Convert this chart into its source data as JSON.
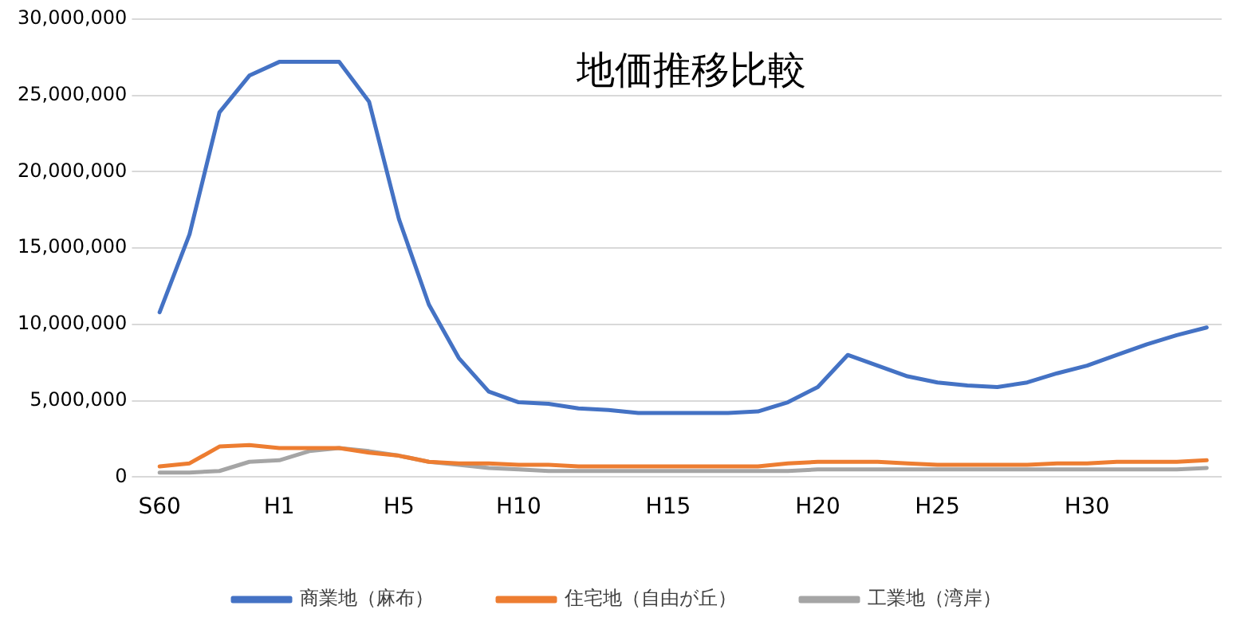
{
  "chart_data": {
    "type": "line",
    "title": "地価推移比較",
    "categories": [
      "S60",
      null,
      null,
      null,
      "H1",
      null,
      null,
      null,
      "H5",
      null,
      null,
      null,
      "H10",
      null,
      null,
      null,
      null,
      "H15",
      null,
      null,
      null,
      null,
      "H20",
      null,
      null,
      null,
      "H25",
      null,
      null,
      null,
      null,
      "H30",
      null,
      null,
      null,
      null
    ],
    "series": [
      {
        "name": "商業地（麻布）",
        "color": "#4472c4",
        "values": [
          10800000,
          15900000,
          23900000,
          26300000,
          27200000,
          27200000,
          27200000,
          24600000,
          16900000,
          11300000,
          7800000,
          5600000,
          4900000,
          4800000,
          4500000,
          4400000,
          4200000,
          4200000,
          4200000,
          4200000,
          4300000,
          4900000,
          5900000,
          8000000,
          7300000,
          6600000,
          6200000,
          6000000,
          5900000,
          6200000,
          6800000,
          7300000,
          8000000,
          8700000,
          9300000,
          9800000
        ]
      },
      {
        "name": "住宅地（自由が丘）",
        "color": "#ed7d31",
        "values": [
          700000,
          900000,
          2000000,
          2100000,
          1900000,
          1900000,
          1900000,
          1600000,
          1400000,
          1000000,
          900000,
          900000,
          800000,
          800000,
          700000,
          700000,
          700000,
          700000,
          700000,
          700000,
          700000,
          900000,
          1000000,
          1000000,
          1000000,
          900000,
          800000,
          800000,
          800000,
          800000,
          900000,
          900000,
          1000000,
          1000000,
          1000000,
          1100000
        ]
      },
      {
        "name": "工業地（湾岸）",
        "color": "#a5a5a5",
        "values": [
          300000,
          300000,
          400000,
          1000000,
          1100000,
          1700000,
          1900000,
          1700000,
          1400000,
          1000000,
          800000,
          600000,
          500000,
          400000,
          400000,
          400000,
          400000,
          400000,
          400000,
          400000,
          400000,
          400000,
          500000,
          500000,
          500000,
          500000,
          500000,
          500000,
          500000,
          500000,
          500000,
          500000,
          500000,
          500000,
          500000,
          600000
        ]
      }
    ],
    "ylim": [
      0,
      30000000
    ],
    "yticks": [
      {
        "value": 0,
        "label": "0"
      },
      {
        "value": 5000000,
        "label": "5,000,000"
      },
      {
        "value": 10000000,
        "label": "10,000,000"
      },
      {
        "value": 15000000,
        "label": "15,000,000"
      },
      {
        "value": 20000000,
        "label": "20,000,000"
      },
      {
        "value": 25000000,
        "label": "25,000,000"
      },
      {
        "value": 30000000,
        "label": "30,000,000"
      }
    ],
    "grid": "y",
    "legend": "bottom",
    "marker": "none",
    "line_style": "solid"
  }
}
